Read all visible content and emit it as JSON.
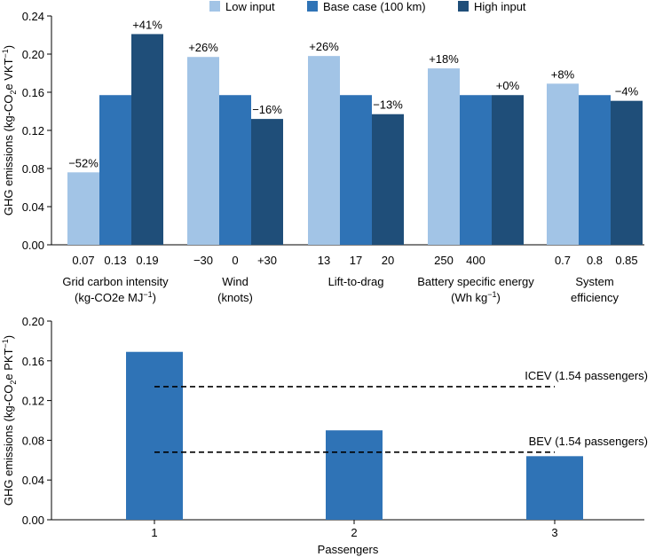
{
  "colors": {
    "low": "#a2c4e6",
    "base": "#2f73b6",
    "high": "#1f4e79",
    "bar2": "#2f73b6",
    "ref": "#000000"
  },
  "chart_data": [
    {
      "type": "bar",
      "title": "",
      "ylabel_main": "GHG emissions (kg-CO",
      "ylabel_sub": "2",
      "ylabel_tail": "e VKT",
      "ylabel_sup": "−1",
      "ylabel_close": ")",
      "ylim": [
        0,
        0.24
      ],
      "yticks": [
        "0.00",
        "0.04",
        "0.08",
        "0.12",
        "0.16",
        "0.20",
        "0.24"
      ],
      "ytick_values": [
        0,
        0.04,
        0.08,
        0.12,
        0.16,
        0.2,
        0.24
      ],
      "legend": [
        {
          "name": "Low input",
          "color_key": "low"
        },
        {
          "name": "Base case (100 km)",
          "color_key": "base"
        },
        {
          "name": "High input",
          "color_key": "high"
        }
      ],
      "groups": [
        {
          "label_line1": "Grid carbon intensity",
          "label_line2": "(kg-CO2e MJ",
          "label_sup": "−1",
          "label_close": ")",
          "bars": [
            {
              "tick": "0.07",
              "value": 0.076,
              "color_key": "low",
              "label": "−52%"
            },
            {
              "tick": "0.13",
              "value": 0.157,
              "color_key": "base",
              "label": ""
            },
            {
              "tick": "0.19",
              "value": 0.221,
              "color_key": "high",
              "label": "+41%"
            }
          ]
        },
        {
          "label_line1": "Wind",
          "label_line2": "(knots)",
          "label_sup": "",
          "label_close": "",
          "bars": [
            {
              "tick": "−30",
              "value": 0.197,
              "color_key": "low",
              "label": "+26%"
            },
            {
              "tick": "0",
              "value": 0.157,
              "color_key": "base",
              "label": ""
            },
            {
              "tick": "+30",
              "value": 0.132,
              "color_key": "high",
              "label": "−16%"
            }
          ]
        },
        {
          "label_line1": "Lift-to-drag",
          "label_line2": "",
          "label_sup": "",
          "label_close": "",
          "bars": [
            {
              "tick": "13",
              "value": 0.198,
              "color_key": "low",
              "label": "+26%"
            },
            {
              "tick": "17",
              "value": 0.157,
              "color_key": "base",
              "label": ""
            },
            {
              "tick": "20",
              "value": 0.137,
              "color_key": "high",
              "label": "−13%"
            }
          ]
        },
        {
          "label_line1": "Battery specific energy",
          "label_line2": "(Wh kg",
          "label_sup": "−1",
          "label_close": ")",
          "bars": [
            {
              "tick": "250",
              "value": 0.185,
              "color_key": "low",
              "label": "+18%"
            },
            {
              "tick": "400",
              "value": 0.157,
              "color_key": "base",
              "label": ""
            },
            {
              "tick": "",
              "value": 0.157,
              "color_key": "high",
              "label": "+0%"
            }
          ]
        },
        {
          "label_line1": "System",
          "label_line2": "efficiency",
          "label_sup": "",
          "label_close": "",
          "bars": [
            {
              "tick": "0.7",
              "value": 0.169,
              "color_key": "low",
              "label": "+8%"
            },
            {
              "tick": "0.8",
              "value": 0.157,
              "color_key": "base",
              "label": ""
            },
            {
              "tick": "0.85",
              "value": 0.151,
              "color_key": "high",
              "label": "−4%"
            }
          ]
        }
      ]
    },
    {
      "type": "bar",
      "title": "",
      "xlabel": "Passengers",
      "ylabel_main": "GHG emissions (kg-CO",
      "ylabel_sub": "2",
      "ylabel_tail": "e PKT",
      "ylabel_sup": "−1",
      "ylabel_close": ")",
      "ylim": [
        0,
        0.2
      ],
      "yticks": [
        "0.00",
        "0.04",
        "0.08",
        "0.12",
        "0.16",
        "0.20"
      ],
      "ytick_values": [
        0,
        0.04,
        0.08,
        0.12,
        0.16,
        0.2
      ],
      "categories": [
        "1",
        "2",
        "3"
      ],
      "values": [
        0.169,
        0.09,
        0.064
      ],
      "reference_lines": [
        {
          "label": "ICEV (1.54 passengers)",
          "value": 0.134
        },
        {
          "label": "BEV (1.54 passengers)",
          "value": 0.068
        }
      ]
    }
  ]
}
